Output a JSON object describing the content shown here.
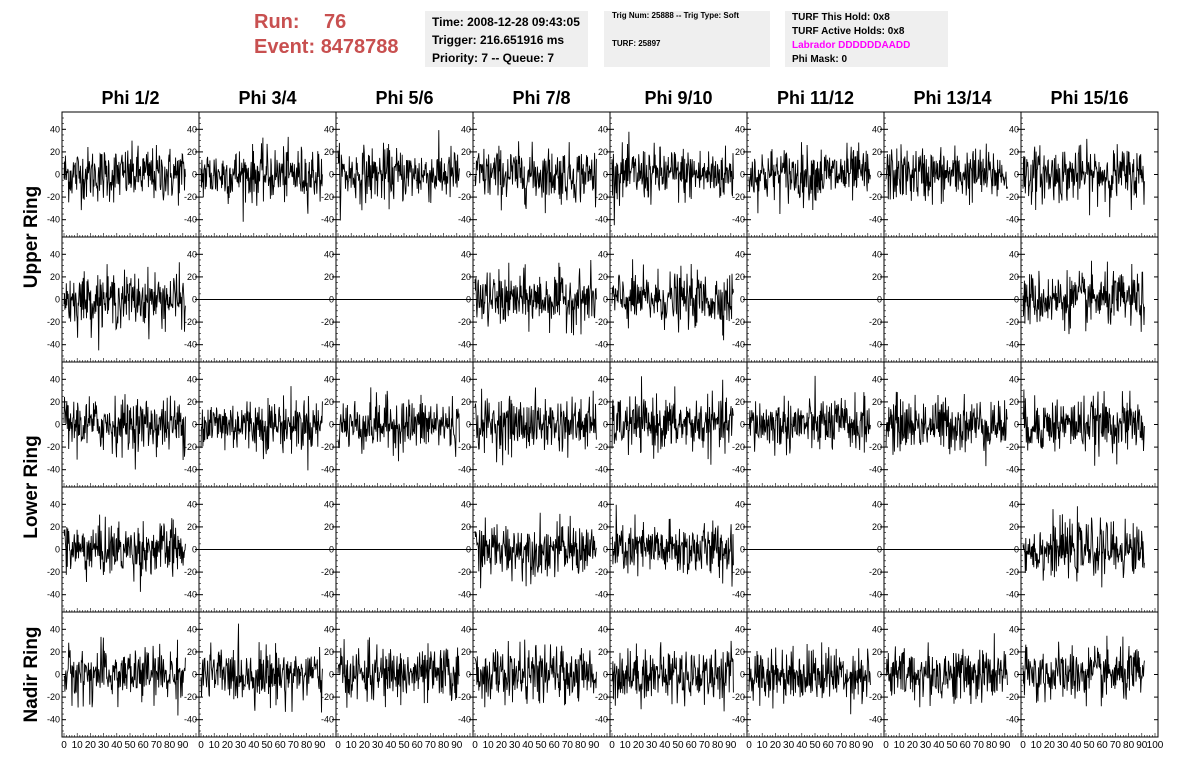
{
  "header": {
    "run_label": "Run:",
    "run_value": "76",
    "event_label": "Event:",
    "event_value": "8478788"
  },
  "time_box": {
    "time": "Time: 2008-12-28 09:43:05",
    "trigger": "Trigger: 216.651916 ms",
    "priority": "Priority: 7 -- Queue: 7"
  },
  "trig_box": {
    "trig_line": "Trig Num: 25888 -- Trig Type: Soft",
    "turf_line": "TURF: 25897"
  },
  "turf_box": {
    "this_hold": "TURF This Hold: 0x8",
    "active_holds": "TURF Active Holds: 0x8",
    "labrador": "Labrador DDDDDDAADD",
    "phi_mask": "Phi Mask: 0",
    "labrador_color": "#ff00ff"
  },
  "colors": {
    "run_event": "#c85050",
    "box_bg": "#efefef",
    "trace": "#000000"
  },
  "chart_data": {
    "type": "line",
    "title": "",
    "columns": [
      "Phi 1/2",
      "Phi 3/4",
      "Phi 5/6",
      "Phi 7/8",
      "Phi 9/10",
      "Phi 11/12",
      "Phi 13/14",
      "Phi 15/16"
    ],
    "ring_labels": [
      {
        "name": "Upper Ring",
        "rows": [
          0,
          1
        ]
      },
      {
        "name": "Lower Ring",
        "rows": [
          2,
          3
        ]
      },
      {
        "name": "Nadir Ring",
        "rows": [
          4
        ]
      }
    ],
    "xlim": [
      0,
      100
    ],
    "ylim": [
      -50,
      50
    ],
    "y_ticks": [
      -40,
      -20,
      0,
      20,
      40
    ],
    "x_ticks": [
      0,
      10,
      20,
      30,
      40,
      50,
      60,
      70,
      80,
      90,
      100
    ],
    "y_ticks_left_label_all_cols": false,
    "samples_per_trace": 260,
    "x_range_of_trace": [
      0,
      92
    ],
    "flat_panels": [
      [
        1,
        1
      ],
      [
        1,
        2
      ],
      [
        1,
        5
      ],
      [
        1,
        6
      ],
      [
        3,
        1
      ],
      [
        3,
        2
      ],
      [
        3,
        5
      ],
      [
        3,
        6
      ]
    ],
    "trace_amplitude_rms": 12,
    "trace_peak": 45
  }
}
